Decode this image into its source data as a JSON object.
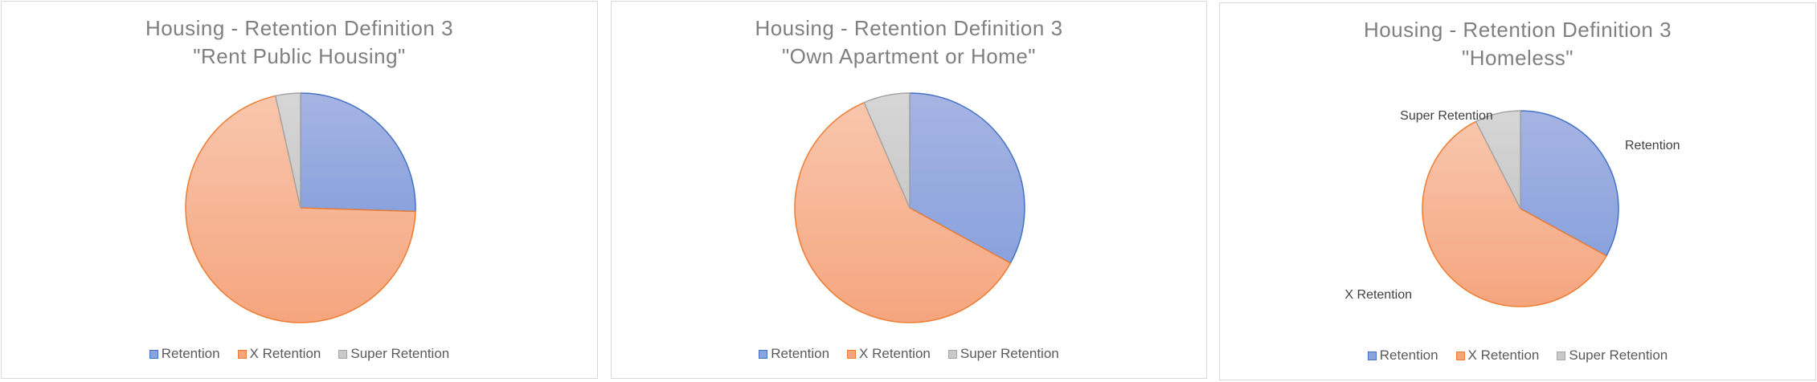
{
  "colors": {
    "retention_top": "#a6b4e2",
    "retention_bottom": "#8aa2de",
    "retention_stroke": "#4472c4",
    "x_top": "#f8c6ad",
    "x_bottom": "#f5a57e",
    "x_stroke": "#ed7d31",
    "super_top": "#d6d6d6",
    "super_bottom": "#c9c9c9",
    "super_stroke": "#a5a5a5"
  },
  "chart_data": [
    {
      "type": "pie",
      "title_line1": "Housing - Retention Definition 3",
      "title_line2": "\"Rent Public Housing\"",
      "categories": [
        "Retention",
        "X Retention",
        "Super Retention"
      ],
      "values": [
        25.5,
        71.0,
        3.5
      ],
      "legend": "bottom",
      "data_labels": []
    },
    {
      "type": "pie",
      "title_line1": "Housing - Retention Definition 3",
      "title_line2": "\"Own Apartment or Home\"",
      "categories": [
        "Retention",
        "X Retention",
        "Super Retention"
      ],
      "values": [
        33.0,
        60.5,
        6.5
      ],
      "legend": "bottom",
      "data_labels": []
    },
    {
      "type": "pie",
      "title_line1": "Housing - Retention Definition 3",
      "title_line2": "\"Homeless\"",
      "categories": [
        "Retention",
        "X Retention",
        "Super Retention"
      ],
      "values": [
        33.0,
        59.5,
        7.5
      ],
      "legend": "bottom",
      "data_labels": [
        "Retention",
        "X Retention",
        "Super Retention"
      ]
    }
  ]
}
